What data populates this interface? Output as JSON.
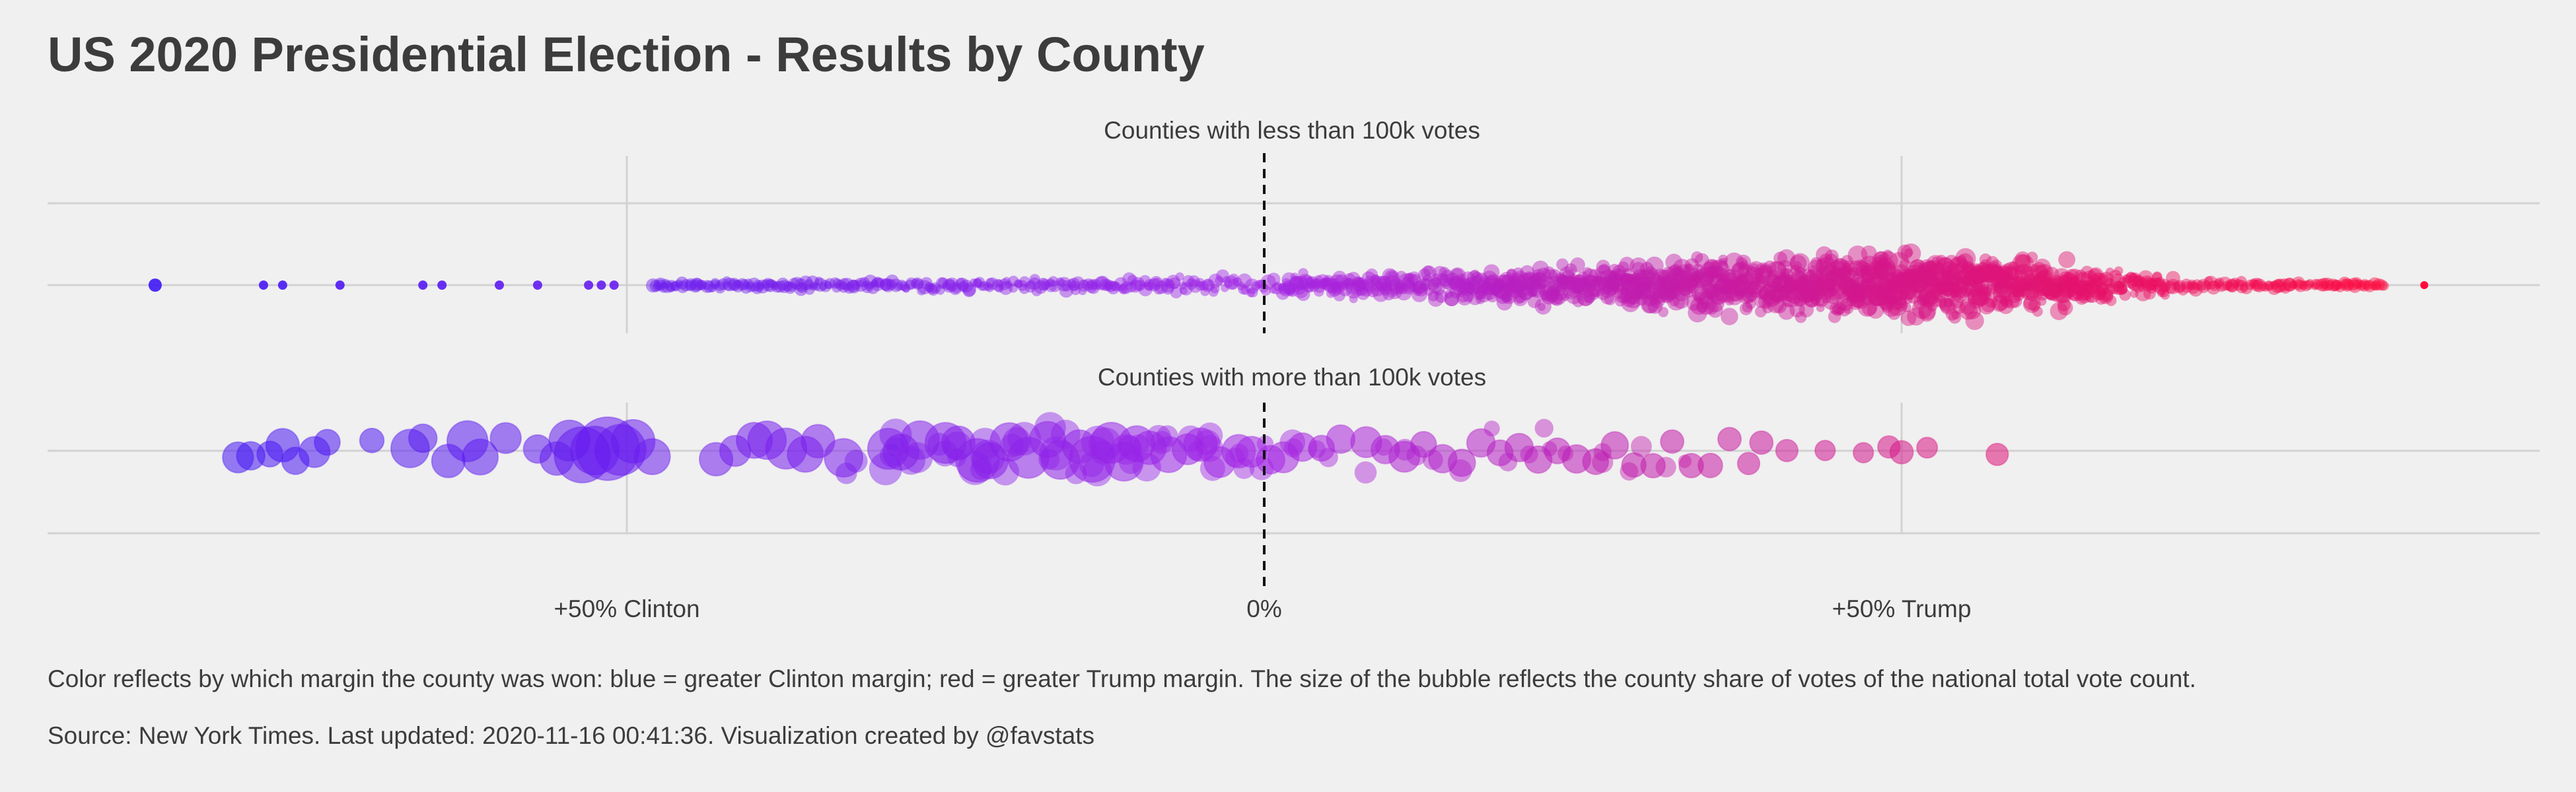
{
  "title": "US 2020 Presidential Election - Results by County",
  "note": "Color reflects by which margin the county was won: blue = greater Clinton margin; red = greater Trump margin. The size of the bubble reflects the county share of votes of the national total vote count.",
  "source": "Source: New York Times. Last updated: 2020-11-16 00:41:36. Visualization created by @favstats",
  "colors": {
    "background": "#f0f0f0",
    "grid": "#d2d2d2",
    "text": "#3c3c3c",
    "clinton_color": "#3a15f5",
    "midpoint_color": "#a326e6",
    "trump_color": "#ff0a3c",
    "zero_line": "#111111"
  },
  "chart_data": [
    {
      "type": "scatter",
      "panel": "small",
      "title": "Counties with less than 100k votes",
      "x_unit": "margin (Trump minus Clinton)",
      "xlim": [
        -95,
        100
      ],
      "tick_values": [
        -50,
        0,
        50
      ],
      "tick_labels": [
        "+50% Clinton",
        "0%",
        "+50% Trump"
      ],
      "grid": true,
      "density": [
        {
          "x": -87,
          "rel": 0.08
        },
        {
          "x": -60,
          "rel": 0.06
        },
        {
          "x": -50,
          "rel": 0.12
        },
        {
          "x": -40,
          "rel": 0.14
        },
        {
          "x": -30,
          "rel": 0.16
        },
        {
          "x": -20,
          "rel": 0.18
        },
        {
          "x": -10,
          "rel": 0.2
        },
        {
          "x": 0,
          "rel": 0.28
        },
        {
          "x": 10,
          "rel": 0.42
        },
        {
          "x": 20,
          "rel": 0.58
        },
        {
          "x": 30,
          "rel": 0.74
        },
        {
          "x": 40,
          "rel": 0.88
        },
        {
          "x": 50,
          "rel": 0.98
        },
        {
          "x": 55,
          "rel": 0.95
        },
        {
          "x": 60,
          "rel": 0.8
        },
        {
          "x": 65,
          "rel": 0.55
        },
        {
          "x": 70,
          "rel": 0.32
        },
        {
          "x": 75,
          "rel": 0.18
        },
        {
          "x": 80,
          "rel": 0.1
        },
        {
          "x": 85,
          "rel": 0.06
        },
        {
          "x": 90,
          "rel": 0.03
        }
      ],
      "outliers": [
        -87,
        -78.5,
        -77,
        -72.5,
        -66,
        -64.5,
        -60,
        -57,
        -53,
        -52,
        -51
      ],
      "bubble_size_range": [
        6,
        16
      ]
    },
    {
      "type": "scatter",
      "panel": "large",
      "title": "Counties with more than 100k votes",
      "x_unit": "margin (Trump minus Clinton)",
      "xlim": [
        -95,
        100
      ],
      "tick_values": [
        -50,
        0,
        50
      ],
      "tick_labels": [
        "+50% Clinton",
        "0%",
        "+50% Trump"
      ],
      "grid": true,
      "points": [
        {
          "x": -80.5,
          "share": 0.35
        },
        {
          "x": -79.5,
          "share": 0.3
        },
        {
          "x": -78,
          "share": 0.25
        },
        {
          "x": -77,
          "share": 0.4
        },
        {
          "x": -76,
          "share": 0.28
        },
        {
          "x": -74.5,
          "share": 0.35
        },
        {
          "x": -73.5,
          "share": 0.25
        },
        {
          "x": -70,
          "share": 0.22
        },
        {
          "x": -67,
          "share": 0.5
        },
        {
          "x": -66,
          "share": 0.3
        },
        {
          "x": -64,
          "share": 0.4
        },
        {
          "x": -62.5,
          "share": 0.55
        },
        {
          "x": -61.5,
          "share": 0.45
        },
        {
          "x": -59.5,
          "share": 0.35
        },
        {
          "x": -57,
          "share": 0.3
        },
        {
          "x": -55.5,
          "share": 0.4
        },
        {
          "x": -54.5,
          "share": 0.55
        },
        {
          "x": -53.5,
          "share": 0.85
        },
        {
          "x": -52.5,
          "share": 0.7
        },
        {
          "x": -51.5,
          "share": 1.0
        },
        {
          "x": -50.5,
          "share": 0.75
        },
        {
          "x": -49.5,
          "share": 0.6
        },
        {
          "x": -48,
          "share": 0.45
        },
        {
          "x": -43,
          "share": 0.4
        },
        {
          "x": -41.5,
          "share": 0.35
        },
        {
          "x": -40,
          "share": 0.45
        },
        {
          "x": -39,
          "share": 0.5
        },
        {
          "x": -37.5,
          "share": 0.55
        },
        {
          "x": -36,
          "share": 0.45
        },
        {
          "x": -35,
          "share": 0.4
        },
        {
          "x": -33,
          "share": 0.5
        },
        {
          "x": -29.5,
          "share": 0.55
        },
        {
          "x": -28.5,
          "share": 0.45
        },
        {
          "x": -27,
          "share": 0.5
        },
        {
          "x": -25,
          "share": 0.55
        },
        {
          "x": -24,
          "share": 0.4
        },
        {
          "x": -22.5,
          "share": 0.6
        },
        {
          "x": -21.5,
          "share": 0.45
        },
        {
          "x": -20,
          "share": 0.5
        },
        {
          "x": -18.5,
          "share": 0.55
        },
        {
          "x": -17,
          "share": 0.45
        },
        {
          "x": -16,
          "share": 0.5
        },
        {
          "x": -14.5,
          "share": 0.4
        },
        {
          "x": -13.5,
          "share": 0.65
        },
        {
          "x": -12,
          "share": 0.55
        },
        {
          "x": -11,
          "share": 0.5
        },
        {
          "x": -10,
          "share": 0.45
        },
        {
          "x": -9,
          "share": 0.4
        },
        {
          "x": -7.5,
          "share": 0.45
        },
        {
          "x": -6,
          "share": 0.35
        },
        {
          "x": -5,
          "share": 0.4
        },
        {
          "x": -3.5,
          "share": 0.35
        },
        {
          "x": -2,
          "share": 0.4
        },
        {
          "x": -1,
          "share": 0.35
        },
        {
          "x": 0.5,
          "share": 0.3
        },
        {
          "x": 1.5,
          "share": 0.35
        },
        {
          "x": 3,
          "share": 0.3
        },
        {
          "x": 4.5,
          "share": 0.25
        },
        {
          "x": 6,
          "share": 0.3
        },
        {
          "x": 8,
          "share": 0.35
        },
        {
          "x": 9.5,
          "share": 0.3
        },
        {
          "x": 11,
          "share": 0.35
        },
        {
          "x": 12.5,
          "share": 0.25
        },
        {
          "x": 14,
          "share": 0.3
        },
        {
          "x": 15.5,
          "share": 0.28
        },
        {
          "x": 17,
          "share": 0.3
        },
        {
          "x": 18.5,
          "share": 0.25
        },
        {
          "x": 20,
          "share": 0.3
        },
        {
          "x": 21.5,
          "share": 0.28
        },
        {
          "x": 23,
          "share": 0.25
        },
        {
          "x": 24.5,
          "share": 0.3
        },
        {
          "x": 26,
          "share": 0.25
        },
        {
          "x": 27.5,
          "share": 0.28
        },
        {
          "x": 29,
          "share": 0.22
        },
        {
          "x": 30.5,
          "share": 0.22
        },
        {
          "x": 32,
          "share": 0.2
        },
        {
          "x": 33.5,
          "share": 0.22
        },
        {
          "x": 35,
          "share": 0.22
        },
        {
          "x": 36.5,
          "share": 0.2
        },
        {
          "x": 38,
          "share": 0.18
        },
        {
          "x": 39,
          "share": 0.2
        },
        {
          "x": 41,
          "share": 0.18
        },
        {
          "x": 44,
          "share": 0.14
        },
        {
          "x": 47,
          "share": 0.14
        },
        {
          "x": 49,
          "share": 0.18
        },
        {
          "x": 50,
          "share": 0.2
        },
        {
          "x": 52,
          "share": 0.15
        },
        {
          "x": 57.5,
          "share": 0.18
        }
      ],
      "bubble_size_range": [
        10,
        48
      ]
    }
  ]
}
